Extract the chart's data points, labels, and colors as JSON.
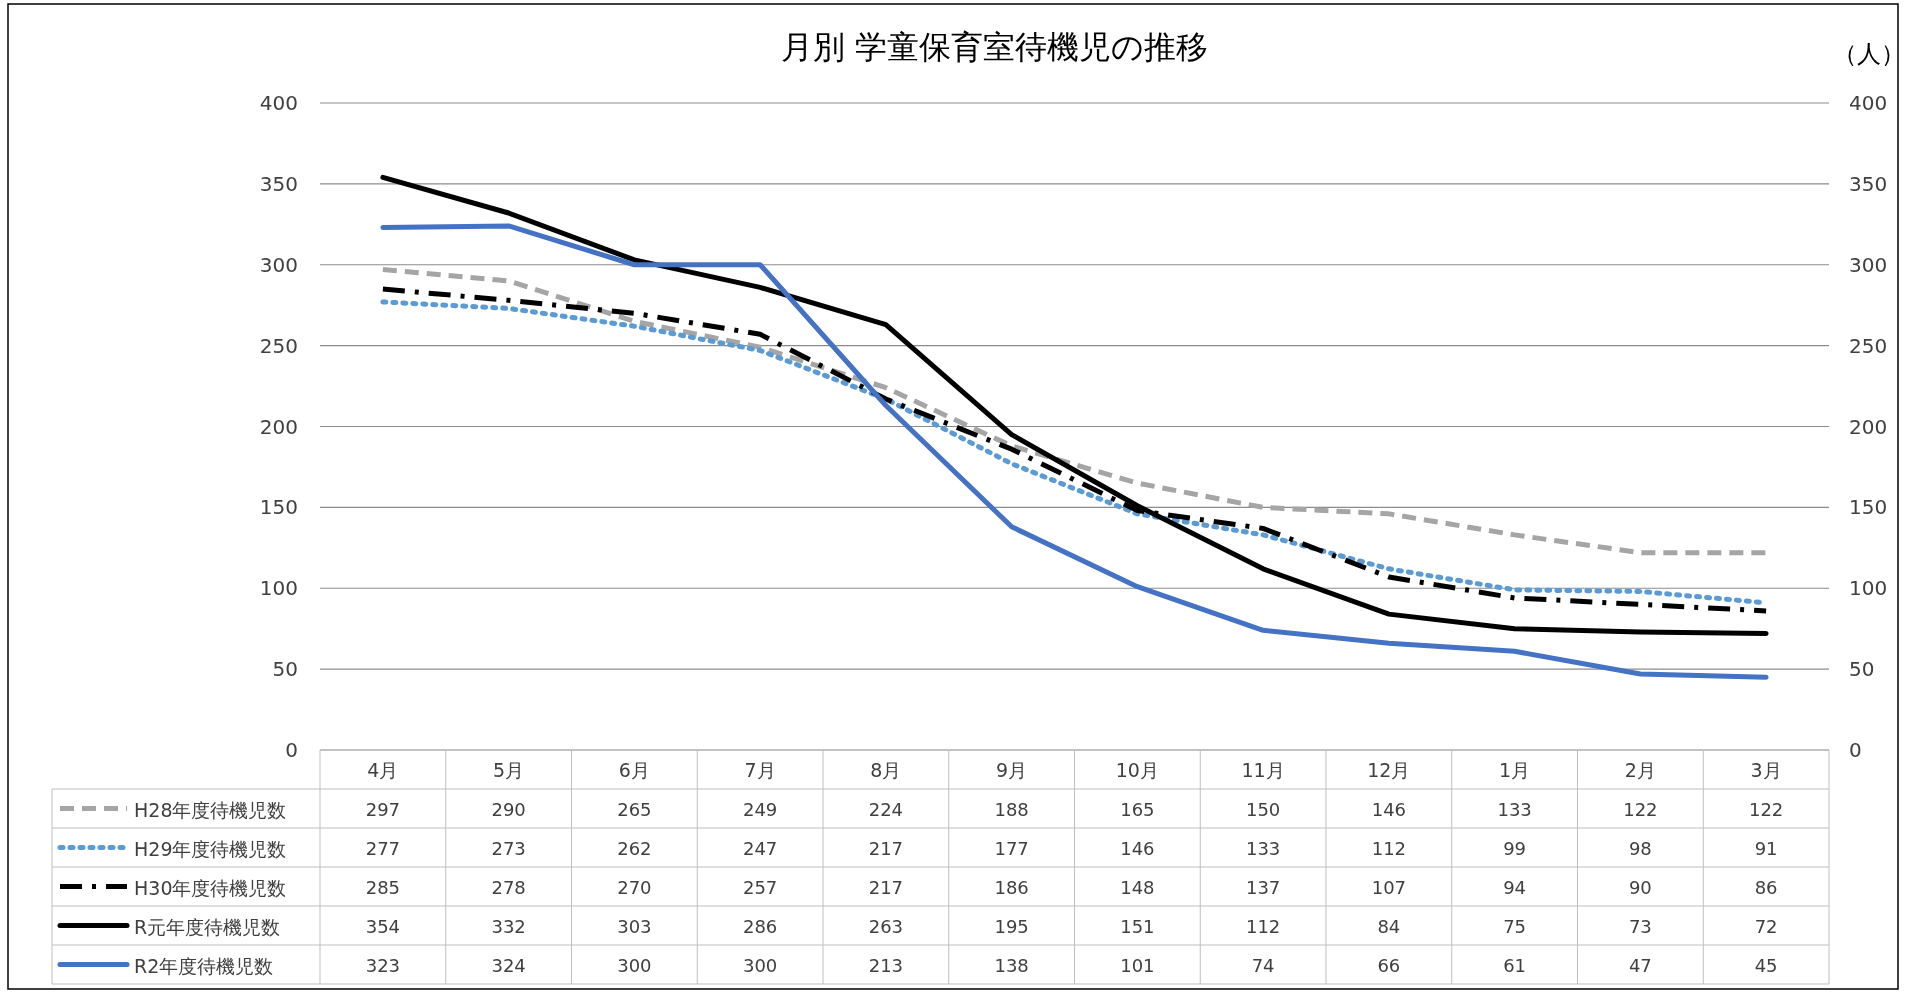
{
  "chart_data": {
    "type": "line",
    "title": "月別 学童保育室待機児の推移",
    "y2label": "（人）",
    "categories": [
      "4月",
      "5月",
      "6月",
      "7月",
      "8月",
      "9月",
      "10月",
      "11月",
      "12月",
      "1月",
      "2月",
      "3月"
    ],
    "ylim": [
      0,
      400
    ],
    "yticks": [
      0,
      50,
      100,
      150,
      200,
      250,
      300,
      350,
      400
    ],
    "y2lim": [
      0,
      400
    ],
    "y2ticks": [
      0,
      50,
      100,
      150,
      200,
      250,
      300,
      350,
      400
    ],
    "grid": "y",
    "legend": "bottom",
    "data_labels": true,
    "marker": "none",
    "series": [
      {
        "name": "H28年度待機児数",
        "color": "#a5a5a5",
        "line_style": "dashed",
        "values": [
          297,
          290,
          265,
          249,
          224,
          188,
          165,
          150,
          146,
          133,
          122,
          122
        ]
      },
      {
        "name": "H29年度待機児数",
        "color": "#5b9bd5",
        "line_style": "dotted",
        "values": [
          277,
          273,
          262,
          247,
          217,
          177,
          146,
          133,
          112,
          99,
          98,
          91
        ]
      },
      {
        "name": "H30年度待機児数",
        "color": "#000000",
        "line_style": "dashdot",
        "values": [
          285,
          278,
          270,
          257,
          217,
          186,
          148,
          137,
          107,
          94,
          90,
          86
        ]
      },
      {
        "name": "R元年度待機児数",
        "color": "#000000",
        "line_style": "solid",
        "values": [
          354,
          332,
          303,
          286,
          263,
          195,
          151,
          112,
          84,
          75,
          73,
          72
        ]
      },
      {
        "name": "R2年度待機児数",
        "color": "#4472c4",
        "line_style": "solid",
        "values": [
          323,
          324,
          300,
          300,
          213,
          138,
          101,
          74,
          66,
          61,
          47,
          45
        ]
      }
    ]
  }
}
